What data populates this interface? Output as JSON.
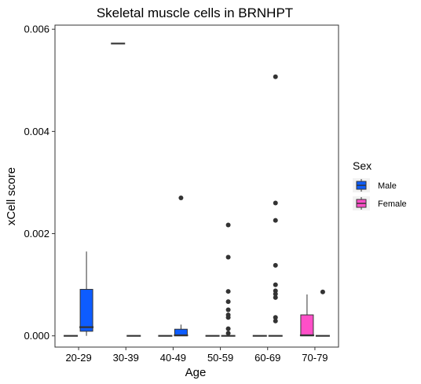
{
  "chart_data": {
    "type": "box",
    "title": "Skeletal muscle cells in BRNHPT",
    "xlabel": "Age",
    "ylabel": "xCell score",
    "categories": [
      "20-29",
      "30-39",
      "40-49",
      "50-59",
      "60-69",
      "70-79"
    ],
    "ylim": [
      -0.00022,
      0.00608
    ],
    "yticks": [
      0.0,
      0.002,
      0.004,
      0.006
    ],
    "ytick_labels": [
      "0.000",
      "0.002",
      "0.004",
      "0.006"
    ],
    "grid": false,
    "legend": {
      "title": "Sex",
      "position": "right",
      "entries": [
        {
          "label": "Male",
          "color": "#0d5cff"
        },
        {
          "label": "Female",
          "color": "#ff4fc8"
        }
      ]
    },
    "series": [
      {
        "name": "Male",
        "color": "#0d5cff",
        "boxes": [
          {
            "category": "20-29",
            "slot": 0,
            "q1": 0.0,
            "median": 0.0,
            "q3": 0.0,
            "whisker_low": 0.0,
            "whisker_high": 0.0,
            "outliers": []
          },
          {
            "category": "20-29",
            "slot": 1,
            "q1": 9e-05,
            "median": 0.00017,
            "q3": 0.00091,
            "whisker_low": 0.0,
            "whisker_high": 0.00165,
            "outliers": []
          },
          {
            "category": "30-39",
            "slot": 0,
            "q1": 0.00572,
            "median": 0.00572,
            "q3": 0.00572,
            "whisker_low": 0.00572,
            "whisker_high": 0.00572,
            "outliers": []
          },
          {
            "category": "30-39",
            "slot": 1,
            "q1": 0.0,
            "median": 0.0,
            "q3": 0.0,
            "whisker_low": 0.0,
            "whisker_high": 0.0,
            "outliers": []
          },
          {
            "category": "40-49",
            "slot": 0,
            "q1": 0.0,
            "median": 0.0,
            "q3": 0.0,
            "whisker_low": 0.0,
            "whisker_high": 0.0,
            "outliers": []
          },
          {
            "category": "40-49",
            "slot": 1,
            "q1": 0.0,
            "median": 1e-05,
            "q3": 0.00013,
            "whisker_low": 0.0,
            "whisker_high": 0.00022,
            "outliers": [
              0.0027
            ]
          },
          {
            "category": "50-59",
            "slot": 0,
            "q1": 0.0,
            "median": 0.0,
            "q3": 0.0,
            "whisker_low": 0.0,
            "whisker_high": 0.0,
            "outliers": []
          },
          {
            "category": "50-59",
            "slot": 1,
            "q1": 0.0,
            "median": 0.0,
            "q3": 0.0,
            "whisker_low": 0.0,
            "whisker_high": 0.0,
            "outliers": [
              0.00217,
              0.00154,
              0.00087,
              0.00067,
              0.00051,
              0.00041,
              0.00036,
              0.00014,
              5e-05
            ]
          },
          {
            "category": "60-69",
            "slot": 0,
            "q1": 0.0,
            "median": 0.0,
            "q3": 0.0,
            "whisker_low": 0.0,
            "whisker_high": 0.0,
            "outliers": []
          },
          {
            "category": "60-69",
            "slot": 1,
            "q1": 0.0,
            "median": 0.0,
            "q3": 0.0,
            "whisker_low": 0.0,
            "whisker_high": 0.0,
            "outliers": [
              0.00507,
              0.0026,
              0.00226,
              0.00138,
              0.001,
              0.00088,
              0.00082,
              0.00075,
              0.00036,
              0.00029
            ]
          }
        ]
      },
      {
        "name": "Female",
        "color": "#ff4fc8",
        "boxes": [
          {
            "category": "70-79",
            "slot": 0,
            "q1": 0.0,
            "median": 1e-05,
            "q3": 0.00041,
            "whisker_low": 0.0,
            "whisker_high": 0.00081,
            "outliers": []
          },
          {
            "category": "70-79",
            "slot": 1,
            "q1": 0.0,
            "median": 0.0,
            "q3": 0.0,
            "whisker_low": 0.0,
            "whisker_high": 0.0,
            "outliers": [
              0.00086
            ]
          }
        ]
      }
    ]
  }
}
